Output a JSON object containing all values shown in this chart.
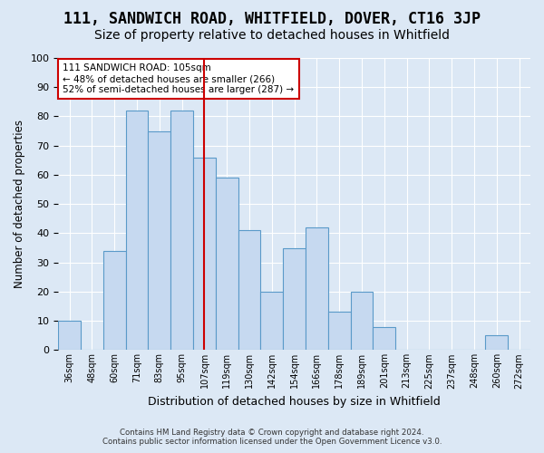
{
  "title": "111, SANDWICH ROAD, WHITFIELD, DOVER, CT16 3JP",
  "subtitle": "Size of property relative to detached houses in Whitfield",
  "xlabel": "Distribution of detached houses by size in Whitfield",
  "ylabel": "Number of detached properties",
  "footnote1": "Contains HM Land Registry data © Crown copyright and database right 2024.",
  "footnote2": "Contains public sector information licensed under the Open Government Licence v3.0.",
  "bin_labels": [
    "36sqm",
    "48sqm",
    "60sqm",
    "71sqm",
    "83sqm",
    "95sqm",
    "107sqm",
    "119sqm",
    "130sqm",
    "142sqm",
    "154sqm",
    "166sqm",
    "178sqm",
    "189sqm",
    "201sqm",
    "213sqm",
    "225sqm",
    "237sqm",
    "248sqm",
    "260sqm",
    "272sqm"
  ],
  "bar_values": [
    10,
    0,
    34,
    82,
    75,
    82,
    66,
    59,
    41,
    20,
    35,
    42,
    13,
    20,
    8,
    0,
    0,
    0,
    0,
    5,
    0
  ],
  "bar_color": "#c6d9f0",
  "bar_edge_color": "#5a9ac9",
  "vline_x": 6,
  "vline_color": "#cc0000",
  "annotation_text": "111 SANDWICH ROAD: 105sqm\n← 48% of detached houses are smaller (266)\n52% of semi-detached houses are larger (287) →",
  "annotation_box_edgecolor": "#cc0000",
  "ylim": [
    0,
    100
  ],
  "yticks": [
    0,
    10,
    20,
    30,
    40,
    50,
    60,
    70,
    80,
    90,
    100
  ],
  "background_color": "#dce8f5",
  "plot_background": "#dce8f5",
  "grid_color": "#ffffff",
  "title_fontsize": 12,
  "subtitle_fontsize": 10
}
